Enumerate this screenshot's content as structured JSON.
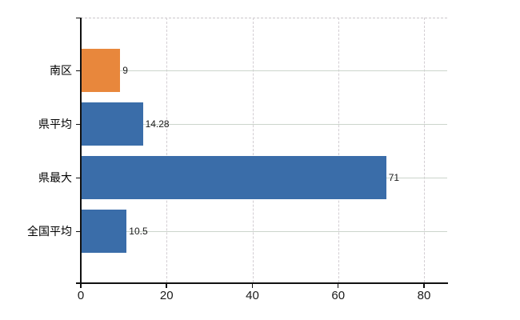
{
  "chart_data": {
    "type": "bar",
    "orientation": "horizontal",
    "title": "",
    "xlabel": "",
    "ylabel": "",
    "legend": "none",
    "categories": [
      "南区",
      "県平均",
      "県最大",
      "全国平均"
    ],
    "values": [
      9,
      14.28,
      71,
      10.5
    ],
    "value_labels": [
      "9",
      "14.28",
      "71",
      "10.5"
    ],
    "bar_colors": [
      "#E8873C",
      "#3A6DA9",
      "#3A6DA9",
      "#3A6DA9"
    ],
    "xticks": [
      0,
      20,
      40,
      60,
      80
    ],
    "xtick_labels": [
      "0",
      "20",
      "40",
      "60",
      "80"
    ],
    "xlim": [
      0,
      85.4
    ],
    "grid": {
      "vertical": "dashed",
      "horizontal": "solid-at-category-centers",
      "top_border": "dashed"
    },
    "style": {
      "axis_color": "#111111",
      "vertical_grid_color": "#d3ced3",
      "horizontal_grid_color": "#ccd5cc",
      "top_border_color": "#cbc7cb",
      "label_color": "#000000",
      "background": "#ffffff"
    }
  }
}
